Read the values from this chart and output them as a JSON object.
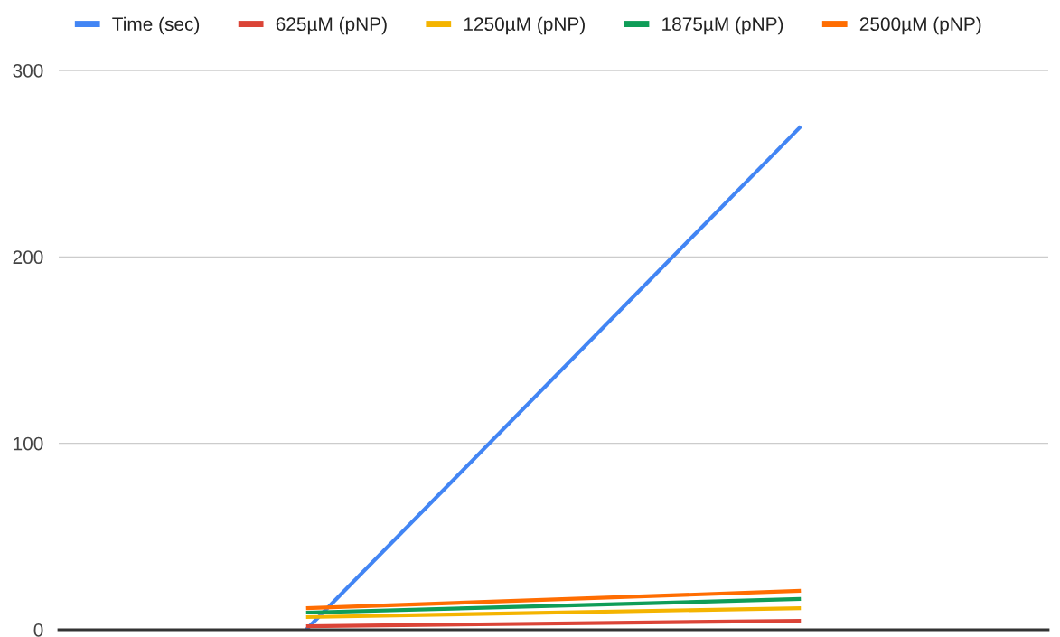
{
  "chart_data": {
    "type": "line",
    "categories": [
      null,
      null
    ],
    "series": [
      {
        "name": "Time (sec)",
        "color": "#4285f4",
        "values": [
          0,
          270
        ]
      },
      {
        "name": "625µM (pNP)",
        "color": "#db4437",
        "values": [
          1.9,
          4.8
        ]
      },
      {
        "name": "1250µM (pNP)",
        "color": "#f4b400",
        "values": [
          6.8,
          11.6
        ]
      },
      {
        "name": "1875µM (pNP)",
        "color": "#0f9d58",
        "values": [
          9.2,
          16.5
        ]
      },
      {
        "name": "2500µM (pNP)",
        "color": "#ff6d01",
        "values": [
          11.6,
          20.9
        ]
      }
    ],
    "ylim": [
      0,
      300
    ],
    "yticks": [
      0,
      100,
      200,
      300
    ],
    "grid": "y",
    "legend": "top",
    "marker": "none",
    "line_style": "solid"
  }
}
